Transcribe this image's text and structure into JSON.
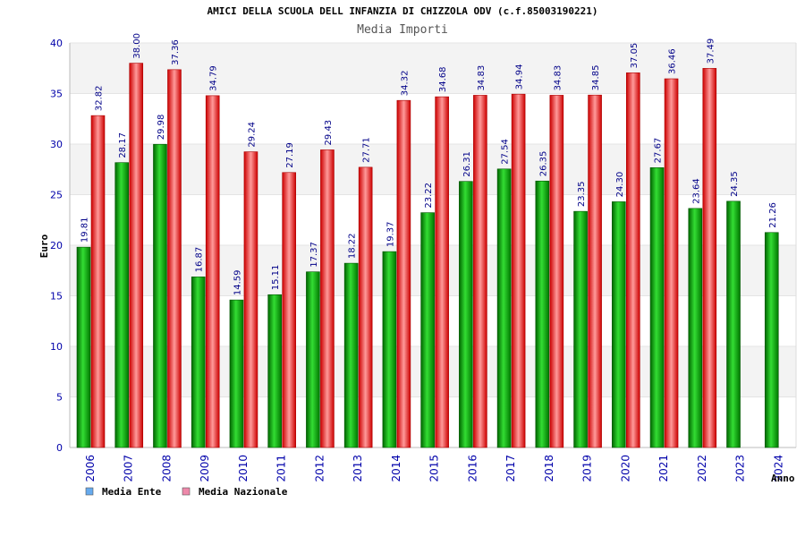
{
  "chart_data": {
    "type": "bar",
    "title": "AMICI DELLA SCUOLA DELL INFANZIA DI CHIZZOLA ODV (c.f.85003190221)",
    "subtitle": "Media Importi",
    "xlabel": "Anno",
    "ylabel": "Euro",
    "ylim": [
      0,
      40
    ],
    "yticks": [
      0,
      5,
      10,
      15,
      20,
      25,
      30,
      35,
      40
    ],
    "grid": true,
    "legend_position": "bottom-left",
    "categories": [
      "2006",
      "2007",
      "2008",
      "2009",
      "2010",
      "2011",
      "2012",
      "2013",
      "2014",
      "2015",
      "2016",
      "2017",
      "2018",
      "2019",
      "2020",
      "2021",
      "2022",
      "2023",
      "2024"
    ],
    "series": [
      {
        "name": "Media Ente",
        "color": "#00aa00",
        "legend_color": "#66aaee",
        "values": [
          19.81,
          28.17,
          29.98,
          16.87,
          14.59,
          15.11,
          17.37,
          18.22,
          19.37,
          23.22,
          26.31,
          27.54,
          26.35,
          23.35,
          24.3,
          27.67,
          23.64,
          24.35,
          21.26
        ],
        "labels": [
          "19.81",
          "28.17",
          "29.98",
          "16.87",
          "14.59",
          "15.11",
          "17.37",
          "18.22",
          "19.37",
          "23.22",
          "26.31",
          "27.54",
          "26.35",
          "23.35",
          "24.30",
          "27.67",
          "23.64",
          "24.35",
          "21.26"
        ]
      },
      {
        "name": "Media Nazionale",
        "color": "#ee2222",
        "legend_color": "#ee88aa",
        "values": [
          32.82,
          38.0,
          37.36,
          34.79,
          29.24,
          27.19,
          29.43,
          27.71,
          34.32,
          34.68,
          34.83,
          34.94,
          34.83,
          34.85,
          37.05,
          36.46,
          37.49,
          null,
          null
        ],
        "labels": [
          "32.82",
          "38.00",
          "37.36",
          "34.79",
          "29.24",
          "27.19",
          "29.43",
          "27.71",
          "34.32",
          "34.68",
          "34.83",
          "34.94",
          "34.83",
          "34.85",
          "37.05",
          "36.46",
          "37.49",
          null,
          null
        ]
      }
    ]
  }
}
